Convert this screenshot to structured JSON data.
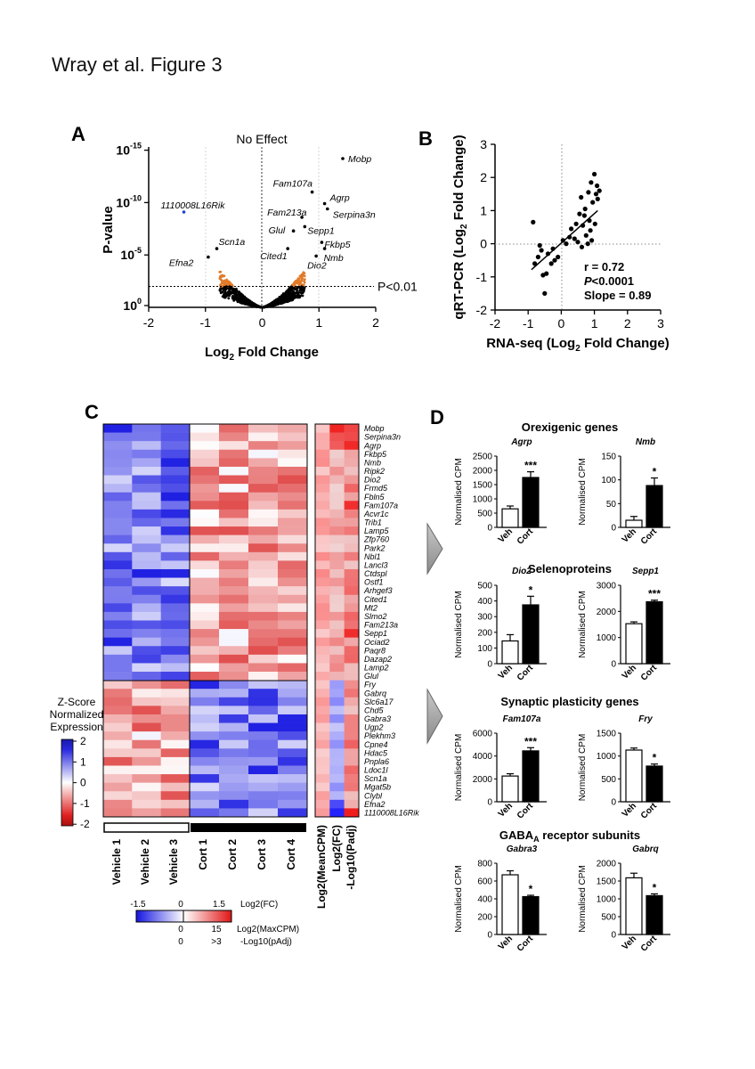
{
  "page_title": "Wray et al. Figure 3",
  "panel_labels": [
    "A",
    "B",
    "C",
    "D"
  ],
  "chart_data": [
    {
      "id": "A",
      "type": "scatter",
      "title": "No Effect",
      "xlabel_main": "Log",
      "xlabel_sub": "2",
      "xlabel_rest": " Fold Change",
      "ylabel": "P-value",
      "xlim": [
        -2,
        2
      ],
      "xticks": [
        "-2",
        "-1",
        "0",
        "1",
        "2"
      ],
      "yticks": [
        {
          "base": "10",
          "exp": "-15",
          "v": 15
        },
        {
          "base": "10",
          "exp": "-10",
          "v": 10
        },
        {
          "base": "10",
          "exp": "-5",
          "v": 5
        },
        {
          "base": "10",
          "exp": "0",
          "v": 0
        }
      ],
      "threshold_label": "P<0.01",
      "threshold_neglog10p": 2,
      "colors": {
        "ns": "#000000",
        "sig": "#e07b2a",
        "strong": "#1f3fd6",
        "labeled": "#000000"
      },
      "labeled_genes": [
        {
          "name": "Mobp",
          "x": 1.42,
          "y": 14.2
        },
        {
          "name": "Fam107a",
          "x": 0.88,
          "y": 11.0
        },
        {
          "name": "Agrp",
          "x": 1.1,
          "y": 9.9
        },
        {
          "name": "Serpina3n",
          "x": 1.15,
          "y": 9.4
        },
        {
          "name": "1110008L16Rik",
          "x": -1.38,
          "y": 9.1
        },
        {
          "name": "Fam213a",
          "x": 0.7,
          "y": 8.6
        },
        {
          "name": "Sepp1",
          "x": 0.75,
          "y": 7.7
        },
        {
          "name": "Glul",
          "x": 0.55,
          "y": 7.3
        },
        {
          "name": "Fkbp5",
          "x": 1.05,
          "y": 6.2
        },
        {
          "name": "Nmb",
          "x": 1.1,
          "y": 5.6
        },
        {
          "name": "Scn1a",
          "x": -0.8,
          "y": 5.6
        },
        {
          "name": "Cited1",
          "x": 0.45,
          "y": 5.6
        },
        {
          "name": "Dio2",
          "x": 0.95,
          "y": 4.9
        },
        {
          "name": "Efna2",
          "x": -0.95,
          "y": 4.8
        }
      ]
    },
    {
      "id": "B",
      "type": "scatter",
      "xlabel": "RNA-seq (Log",
      "xlabel_sub": "2",
      "xlabel_rest": " Fold Change)",
      "ylabel": "qRT-PCR (Log",
      "ylabel_sub": "2",
      "ylabel_rest": " Fold Change)",
      "xlim": [
        -2,
        3
      ],
      "ylim": [
        -2,
        3
      ],
      "xticks": [
        "-2",
        "-1",
        "0",
        "1",
        "2",
        "3"
      ],
      "yticks": [
        "3",
        "2",
        "1",
        "0",
        "-1",
        "-2"
      ],
      "stats": [
        "r = 0.72",
        "<0.0001",
        "Slope = 0.89"
      ],
      "stats_p_label": "P",
      "fit": {
        "slope": 0.89,
        "intercept": 0.02,
        "x_range": [
          -0.9,
          1.1
        ]
      },
      "points": [
        [
          -0.85,
          0.65
        ],
        [
          -0.8,
          -0.6
        ],
        [
          -0.7,
          -0.4
        ],
        [
          -0.6,
          -0.2
        ],
        [
          -0.55,
          -0.95
        ],
        [
          -0.5,
          -1.5
        ],
        [
          -0.45,
          -0.9
        ],
        [
          -0.4,
          -0.3
        ],
        [
          -0.3,
          -0.6
        ],
        [
          -0.25,
          -0.15
        ],
        [
          -0.2,
          -0.5
        ],
        [
          -0.1,
          -0.4
        ],
        [
          0.05,
          0.1
        ],
        [
          0.15,
          0.0
        ],
        [
          0.25,
          0.2
        ],
        [
          0.3,
          0.45
        ],
        [
          0.4,
          0.15
        ],
        [
          0.45,
          0.6
        ],
        [
          0.5,
          0.05
        ],
        [
          0.55,
          0.9
        ],
        [
          0.6,
          1.4
        ],
        [
          0.62,
          -0.1
        ],
        [
          0.65,
          0.55
        ],
        [
          0.7,
          0.85
        ],
        [
          0.72,
          1.05
        ],
        [
          0.75,
          0.25
        ],
        [
          0.8,
          0.0
        ],
        [
          0.82,
          1.55
        ],
        [
          0.85,
          0.7
        ],
        [
          0.88,
          0.4
        ],
        [
          0.9,
          1.85
        ],
        [
          0.92,
          0.1
        ],
        [
          0.95,
          1.25
        ],
        [
          1.0,
          2.1
        ],
        [
          1.02,
          0.6
        ],
        [
          1.05,
          1.5
        ],
        [
          1.08,
          1.75
        ],
        [
          1.1,
          1.35
        ],
        [
          1.15,
          1.6
        ],
        [
          -0.65,
          -0.05
        ]
      ]
    },
    {
      "id": "C",
      "type": "heatmap",
      "genes": [
        "Mobp",
        "Serpina3n",
        "Agrp",
        "Fkbp5",
        "Nmb",
        "Ripk2",
        "Dio2",
        "Frmd5",
        "Fbln5",
        "Fam107a",
        "Acvr1c",
        "Trib1",
        "Lamp5",
        "Zfp760",
        "Park2",
        "Nbl1",
        "Lancl3",
        "Ctdspl",
        "Ostf1",
        "Arhgef3",
        "Cited1",
        "Mt2",
        "Slmo2",
        "Fam213a",
        "Sepp1",
        "Ociad2",
        "Paqr8",
        "Dazap2",
        "Lamp2",
        "Glul",
        "Fry",
        "Gabrq",
        "Slc6a17",
        "Chd5",
        "Gabra3",
        "Ugp2",
        "Plekhm3",
        "Cpne4",
        "Hdac5",
        "Pnpla6",
        "Ldoc1l",
        "Scn1a",
        "Mgat5b",
        "Clybl",
        "Efna2",
        "1110008L16Rik"
      ],
      "samples": [
        "Vehicle 1",
        "Vehicle 2",
        "Vehicle 3",
        "Cort 1",
        "Cort 2",
        "Cort 3",
        "Cort 4"
      ],
      "annotation_columns": [
        "Log2(MeanCPM)",
        "Log2(FC)",
        "-Log10(Padj)"
      ],
      "zscore_legend": {
        "title": [
          "Z-Score",
          "Normalized",
          "Expression"
        ],
        "ticks": [
          "2",
          "1",
          "0",
          "-1",
          "-2"
        ]
      },
      "fc_legend": {
        "ticks": [
          "-1.5",
          "0",
          "1.5"
        ],
        "label": "Log2(FC)"
      },
      "cpm_legend": {
        "ticks": [
          "0",
          "15"
        ],
        "label": "Log2(MaxCPM)"
      },
      "padj_legend": {
        "ticks": [
          "0",
          ">3"
        ],
        "label": "-Log10(pAdj)"
      },
      "n_up": 30
    },
    {
      "id": "D",
      "type": "bar",
      "ylabel": "Normalised CPM",
      "categories": [
        "Veh",
        "Cort"
      ],
      "groups": [
        {
          "title": "Orexigenic genes",
          "charts": [
            {
              "gene": "Agrp",
              "values": [
                650,
                1750
              ],
              "errors": [
                100,
                200
              ],
              "ylim": [
                0,
                2500
              ],
              "yticks": [
                "0",
                "500",
                "1000",
                "1500",
                "2000",
                "2500"
              ],
              "sig": "***"
            },
            {
              "gene": "Nmb",
              "values": [
                15,
                88
              ],
              "errors": [
                8,
                16
              ],
              "ylim": [
                0,
                150
              ],
              "yticks": [
                "0",
                "50",
                "100",
                "150"
              ],
              "sig": "*"
            }
          ]
        },
        {
          "title": "Selenoproteins",
          "charts": [
            {
              "gene": "Dio2",
              "values": [
                145,
                375
              ],
              "errors": [
                40,
                55
              ],
              "ylim": [
                0,
                500
              ],
              "yticks": [
                "0",
                "100",
                "200",
                "300",
                "400",
                "500"
              ],
              "sig": "*"
            },
            {
              "gene": "Sepp1",
              "values": [
                1530,
                2370
              ],
              "errors": [
                70,
                60
              ],
              "ylim": [
                0,
                3000
              ],
              "yticks": [
                "0",
                "1000",
                "2000",
                "3000"
              ],
              "sig": "***"
            }
          ]
        },
        {
          "title": "Synaptic plasticity genes",
          "charts": [
            {
              "gene": "Fam107a",
              "values": [
                2250,
                4450
              ],
              "errors": [
                200,
                280
              ],
              "ylim": [
                0,
                6000
              ],
              "yticks": [
                "0",
                "2000",
                "4000",
                "6000"
              ],
              "sig": "***"
            },
            {
              "gene": "Fry",
              "values": [
                1130,
                780
              ],
              "errors": [
                45,
                45
              ],
              "ylim": [
                0,
                1500
              ],
              "yticks": [
                "0",
                "500",
                "1000",
                "1500"
              ],
              "sig": "*"
            }
          ]
        },
        {
          "title_main": "GABA",
          "title_sub": "A",
          "title_rest": " receptor subunits",
          "charts": [
            {
              "gene": "Gabra3",
              "values": [
                670,
                425
              ],
              "errors": [
                45,
                15
              ],
              "ylim": [
                0,
                800
              ],
              "yticks": [
                "0",
                "200",
                "400",
                "600",
                "800"
              ],
              "sig": "*"
            },
            {
              "gene": "Gabrq",
              "values": [
                1590,
                1090
              ],
              "errors": [
                130,
                50
              ],
              "ylim": [
                0,
                2000
              ],
              "yticks": [
                "0",
                "500",
                "1000",
                "1500",
                "2000"
              ],
              "sig": "*"
            }
          ]
        }
      ]
    }
  ]
}
